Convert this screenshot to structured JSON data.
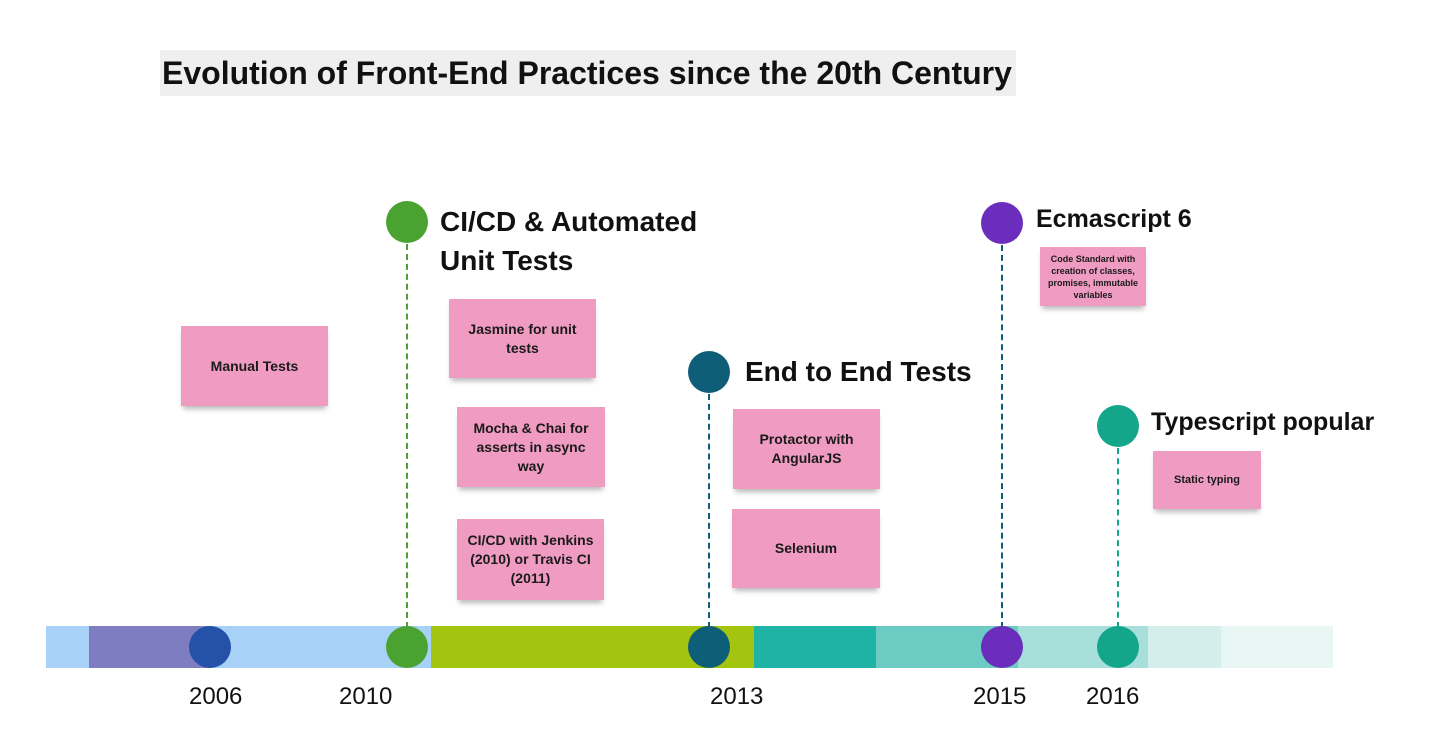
{
  "title": "Evolution of Front-End Practices since the 20th Century",
  "colors": {
    "bar_segments": [
      "#a8d1f7",
      "#7e7dc2",
      "#a8d1f7",
      "#a3c510",
      "#1fb3a6",
      "#6ccbc2",
      "#a7e0da",
      "#d4efeb",
      "#e8f6f4"
    ],
    "dot_2006": "#2352a8",
    "green_2010": "#4aa330",
    "navy_2013": "#0f5e78",
    "purple_2015": "#6b2dbb",
    "teal_2016": "#14a68a",
    "sticky_note": "#ef9bc2",
    "title_background": "#efefef"
  },
  "timeline": {
    "years": [
      "2006",
      "2010",
      "2013",
      "2015",
      "2016"
    ]
  },
  "milestones": {
    "cicd": {
      "heading_line1": "CI/CD & Automated",
      "heading_line2": "Unit Tests",
      "notes": [
        "Jasmine for unit tests",
        "Mocha & Chai for asserts in async way",
        "CI/CD with Jenkins (2010) or Travis CI (2011)"
      ]
    },
    "e2e": {
      "heading": "End to End Tests",
      "notes": [
        "Protactor with AngularJS",
        "Selenium"
      ]
    },
    "es6": {
      "heading": "Ecmascript 6",
      "note": "Code Standard with creation of classes, promises, immutable variables"
    },
    "typescript": {
      "heading": "Typescript popular",
      "note": "Static typing"
    },
    "manual": {
      "note": "Manual Tests"
    }
  }
}
